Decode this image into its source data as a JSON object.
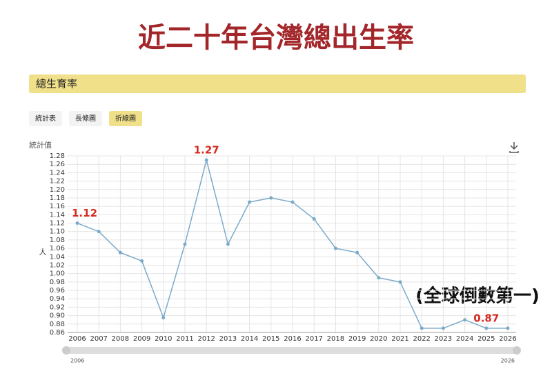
{
  "chart_data": {
    "type": "line",
    "title": "近二十年台灣總出生率",
    "section": "總生育率",
    "tabs": [
      "統計表",
      "長條圖",
      "折線圖"
    ],
    "active_tab": 2,
    "y_axis_name": "統計值",
    "y_unit": "人",
    "annotation": "(全球倒數第一)",
    "categories": [
      "2006",
      "2007",
      "2008",
      "2009",
      "2010",
      "2011",
      "2012",
      "2013",
      "2014",
      "2015",
      "2016",
      "2017",
      "2018",
      "2019",
      "2020",
      "2021",
      "2022",
      "2023",
      "2024",
      "2025",
      "2026"
    ],
    "values": [
      1.12,
      1.1,
      1.05,
      1.03,
      0.895,
      1.07,
      1.27,
      1.07,
      1.17,
      1.18,
      1.17,
      1.13,
      1.06,
      1.05,
      0.99,
      0.98,
      0.87,
      0.87,
      0.89,
      0.87,
      0.87
    ],
    "labeled_points": [
      0,
      6,
      19
    ],
    "color": "#7aaac8",
    "label_color": "#d62a20",
    "ylim": [
      0.86,
      1.28
    ],
    "yticks": [
      0.86,
      0.88,
      {
        "value": 0.9,
        "label": "0.90"
      },
      0.92,
      0.94,
      0.96,
      0.98,
      {
        "value": 1.0,
        "label": "1.00"
      },
      1.02,
      1.04,
      1.06,
      1.08,
      {
        "value": 1.1,
        "label": "1.10"
      },
      1.12,
      1.14,
      1.16,
      1.18,
      {
        "value": 1.2,
        "label": "1.20"
      },
      1.22,
      1.24,
      1.26,
      1.28
    ],
    "grid": true
  }
}
